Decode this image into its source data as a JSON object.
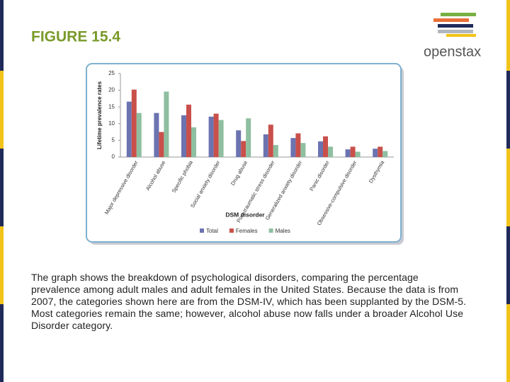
{
  "figure_title": "FIGURE 15.4",
  "logo": "openstax",
  "caption": "The graph shows the breakdown of psychological disorders, comparing the percentage prevalence among adult males and adult females in the United States. Because the data is from 2007, the categories shown here are from the DSM-IV, which has been supplanted by the DSM-5. Most categories remain the same; however, alcohol abuse now falls under a broader Alcohol Use Disorder category.",
  "chart_data": {
    "type": "bar",
    "ylabel": "Lifetime prevalence rates",
    "xlabel": "DSM disorder",
    "categories": [
      "Major depressive disorder",
      "Alcohol abuse",
      "Specific phobia",
      "Social anxiety disorder",
      "Drug abuse",
      "Post-traumatic stress disorder",
      "Generalized anxiety disorder",
      "Panic disorder",
      "Obsessive-compulsive disorder",
      "Dysthymia"
    ],
    "series": [
      {
        "name": "Total",
        "color": "#6b73b0",
        "values": [
          16.6,
          13.2,
          12.5,
          12.1,
          8.0,
          6.8,
          5.7,
          4.7,
          2.3,
          2.5
        ]
      },
      {
        "name": "Females",
        "color": "#c9504a",
        "values": [
          20.2,
          7.5,
          15.7,
          13.0,
          4.8,
          9.7,
          7.1,
          6.2,
          3.1,
          3.1
        ]
      },
      {
        "name": "Males",
        "color": "#8ebfa0",
        "values": [
          13.2,
          19.6,
          8.9,
          11.1,
          11.6,
          3.6,
          4.2,
          3.1,
          1.6,
          1.8
        ]
      }
    ],
    "ylim": [
      0,
      25
    ],
    "yticks": [
      0,
      5,
      10,
      15,
      20,
      25
    ],
    "grid": false,
    "legend": "bottom"
  }
}
